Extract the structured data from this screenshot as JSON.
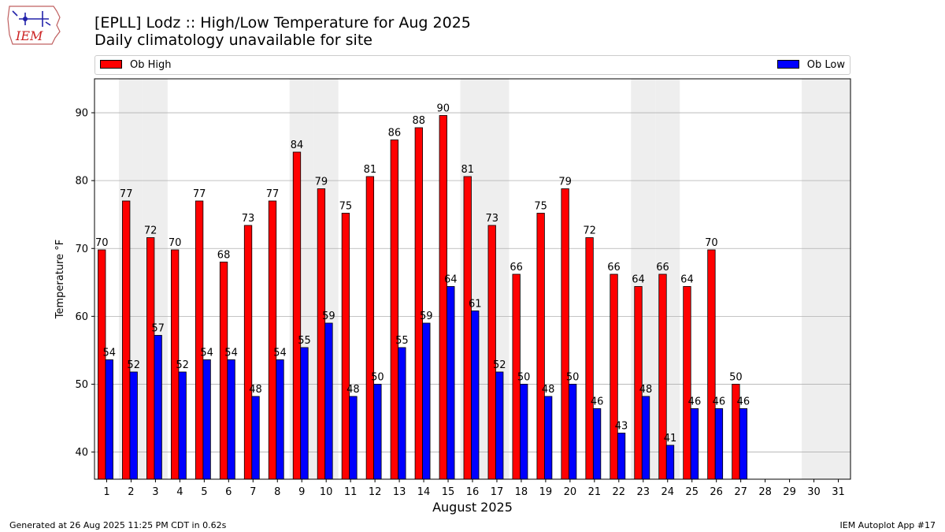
{
  "logo": {
    "text": "IEM"
  },
  "header": {
    "title_line1": "[EPLL] Lodz :: High/Low Temperature for Aug 2025",
    "title_line2": "Daily climatology unavailable for site"
  },
  "legend": {
    "high_label": "Ob High",
    "low_label": "Ob Low",
    "placement": "top, spanning axes"
  },
  "colors": {
    "high": "#ff0000",
    "low": "#0000ff",
    "weekend_band": "#eeeeee",
    "grid": "#b0b0b0"
  },
  "chart_data": {
    "type": "bar",
    "categories": [
      "1",
      "2",
      "3",
      "4",
      "5",
      "6",
      "7",
      "8",
      "9",
      "10",
      "11",
      "12",
      "13",
      "14",
      "15",
      "16",
      "17",
      "18",
      "19",
      "20",
      "21",
      "22",
      "23",
      "24",
      "25",
      "26",
      "27",
      "28",
      "29",
      "30",
      "31"
    ],
    "series": [
      {
        "name": "Ob High",
        "values": [
          69.8,
          77.0,
          71.6,
          69.8,
          77.0,
          68.0,
          73.4,
          77.0,
          84.2,
          78.8,
          75.2,
          80.6,
          86.0,
          87.8,
          89.6,
          80.6,
          73.4,
          66.2,
          75.2,
          78.8,
          71.6,
          66.2,
          64.4,
          66.2,
          64.4,
          69.8,
          50.0,
          null,
          null,
          null,
          null
        ],
        "labels": [
          "70",
          "77",
          "72",
          "70",
          "77",
          "68",
          "73",
          "77",
          "84",
          "79",
          "75",
          "81",
          "86",
          "88",
          "90",
          "81",
          "73",
          "66",
          "75",
          "79",
          "72",
          "66",
          "64",
          "66",
          "64",
          "70",
          "50",
          "",
          "",
          "",
          ""
        ]
      },
      {
        "name": "Ob Low",
        "values": [
          53.6,
          51.8,
          57.2,
          51.8,
          53.6,
          53.6,
          48.2,
          53.6,
          55.4,
          59.0,
          48.2,
          50.0,
          55.4,
          59.0,
          64.4,
          60.8,
          51.8,
          50.0,
          48.2,
          50.0,
          46.4,
          42.8,
          48.2,
          41.0,
          46.4,
          46.4,
          46.4,
          null,
          null,
          null,
          null
        ],
        "labels": [
          "54",
          "52",
          "57",
          "52",
          "54",
          "54",
          "48",
          "54",
          "55",
          "59",
          "48",
          "50",
          "55",
          "59",
          "64",
          "61",
          "52",
          "50",
          "48",
          "50",
          "46",
          "43",
          "48",
          "41",
          "46",
          "46",
          "46",
          "",
          "",
          "",
          ""
        ]
      }
    ],
    "weekend_days": [
      2,
      3,
      9,
      10,
      16,
      17,
      23,
      24,
      30,
      31
    ],
    "xlabel": "August 2025",
    "ylabel": "Temperature °F",
    "ylim": [
      36,
      95
    ],
    "yticks": [
      "40",
      "50",
      "60",
      "70",
      "80",
      "90"
    ],
    "grid": "horizontal"
  },
  "footer": {
    "generated": "Generated at 26 Aug 2025 11:25 PM CDT in 0.62s",
    "app": "IEM Autoplot App #17"
  }
}
